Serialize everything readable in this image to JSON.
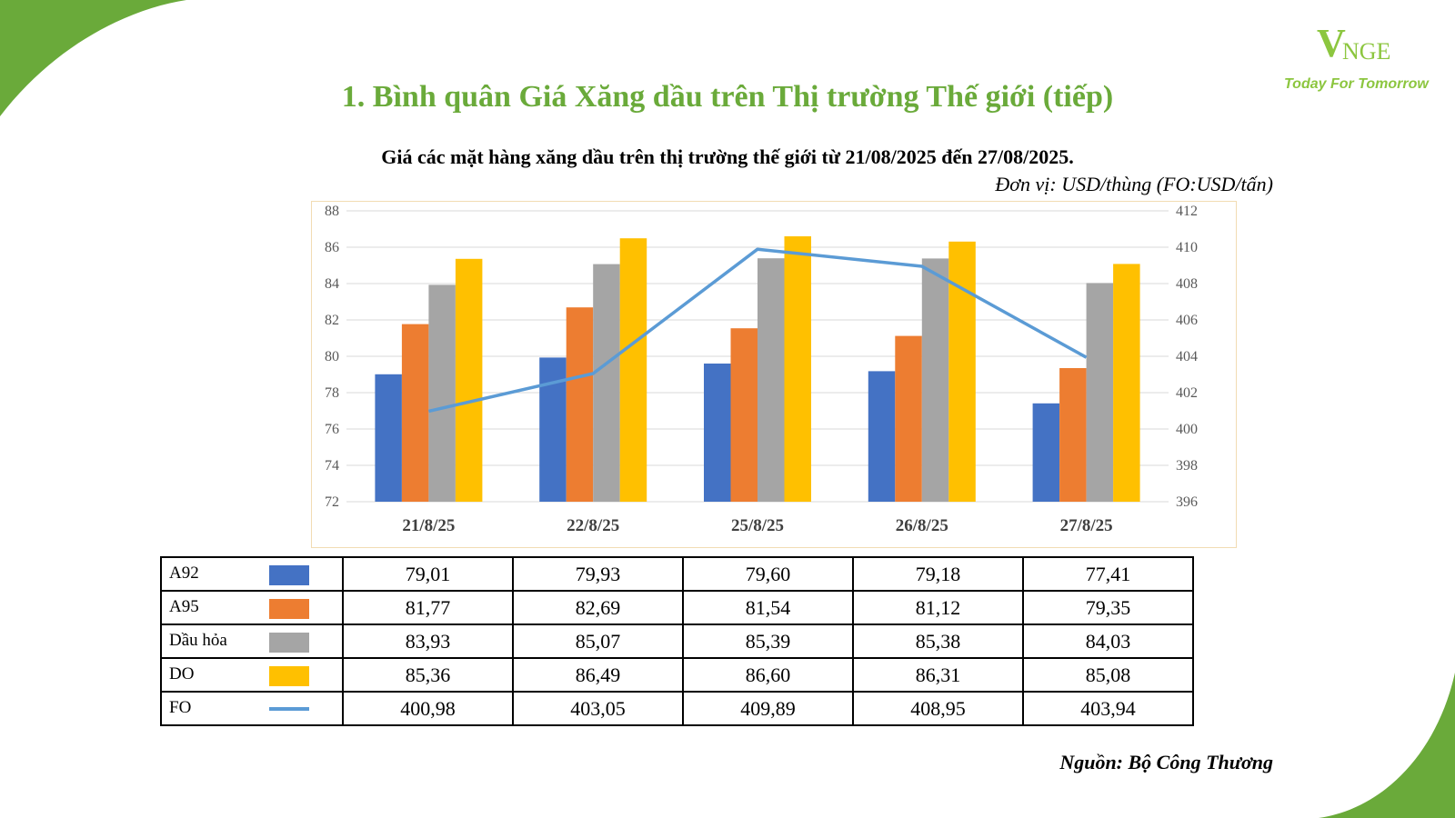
{
  "logo": {
    "mark_v": "V",
    "mark_rest": "NGE",
    "tagline": "Today For Tomorrow"
  },
  "page_title": "1. Bình quân Giá Xăng dầu trên Thị trường Thế giới (tiếp)",
  "source": "Nguồn: Bộ Công Thương",
  "colors": {
    "A92": "#4472c4",
    "A95": "#ed7d31",
    "Dau_hoa": "#a5a5a5",
    "DO": "#ffc000",
    "FO": "#5b9bd5",
    "title_green": "#6aaa3a"
  },
  "chart_data": {
    "type": "bar",
    "title": "Giá các mặt hàng xăng dầu trên thị trường thế giới từ 21/08/2025 đến 27/08/2025.",
    "unit": "Đơn vị: USD/thùng (FO:USD/tấn)",
    "categories": [
      "21/8/25",
      "22/8/25",
      "25/8/25",
      "26/8/25",
      "27/8/25"
    ],
    "y_left": {
      "min": 72,
      "max": 88,
      "step": 2,
      "ticks": [
        "72",
        "74",
        "76",
        "78",
        "80",
        "82",
        "84",
        "86",
        "88"
      ]
    },
    "y_right": {
      "min": 396,
      "max": 412,
      "step": 2,
      "ticks": [
        "396",
        "398",
        "400",
        "402",
        "404",
        "406",
        "408",
        "410",
        "412"
      ]
    },
    "grid": true,
    "legend": "table-below",
    "series": [
      {
        "name": "A92",
        "type": "bar",
        "axis": "left",
        "values": [
          79.01,
          79.93,
          79.6,
          79.18,
          77.41
        ],
        "labels": [
          "79,01",
          "79,93",
          "79,60",
          "79,18",
          "77,41"
        ]
      },
      {
        "name": "A95",
        "type": "bar",
        "axis": "left",
        "values": [
          81.77,
          82.69,
          81.54,
          81.12,
          79.35
        ],
        "labels": [
          "81,77",
          "82,69",
          "81,54",
          "81,12",
          "79,35"
        ]
      },
      {
        "name": "Dầu hỏa",
        "type": "bar",
        "axis": "left",
        "values": [
          83.93,
          85.07,
          85.39,
          85.38,
          84.03
        ],
        "labels": [
          "83,93",
          "85,07",
          "85,39",
          "85,38",
          "84,03"
        ]
      },
      {
        "name": "DO",
        "type": "bar",
        "axis": "left",
        "values": [
          85.36,
          86.49,
          86.6,
          86.31,
          85.08
        ],
        "labels": [
          "85,36",
          "86,49",
          "86,60",
          "86,31",
          "85,08"
        ]
      },
      {
        "name": "FO",
        "type": "line",
        "axis": "right",
        "values": [
          400.98,
          403.05,
          409.89,
          408.95,
          403.94
        ],
        "labels": [
          "400,98",
          "403,05",
          "409,89",
          "408,95",
          "403,94"
        ]
      }
    ]
  }
}
